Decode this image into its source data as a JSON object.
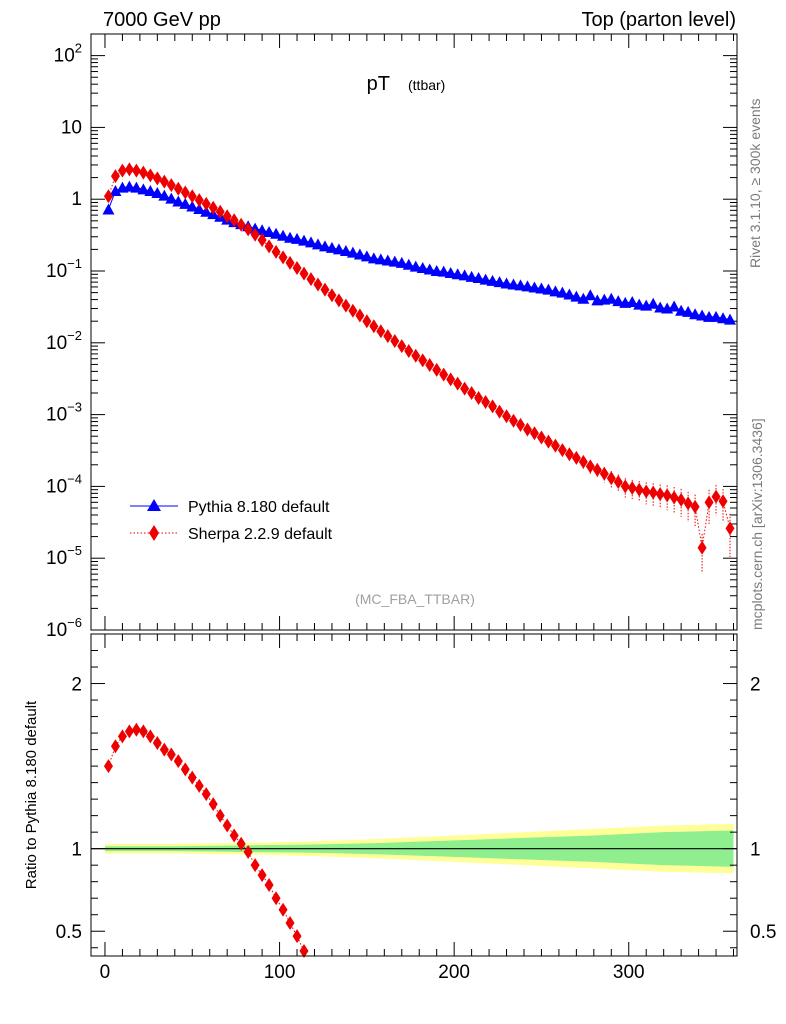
{
  "header": {
    "left": "7000 GeV pp",
    "right": "Top (parton level)"
  },
  "side_labels": {
    "rivet": "Rivet 3.1.10, ≥ 300k events",
    "mcplots": "mcplots.cern.ch [arXiv:1306.3436]"
  },
  "chart_data": [
    {
      "type": "scatter",
      "panel": "main",
      "title_main": "pT",
      "title_sub": "(ttbar)",
      "watermark": "(MC_FBA_TTBAR)",
      "yscale": "log",
      "ylim": [
        1e-06,
        200
      ],
      "xlim": [
        -8,
        362
      ],
      "ytick_labels": [
        {
          "value": 1e-06,
          "base": "10",
          "exp": "−6"
        },
        {
          "value": 1e-05,
          "base": "10",
          "exp": "−5"
        },
        {
          "value": 0.0001,
          "base": "10",
          "exp": "−4"
        },
        {
          "value": 0.001,
          "base": "10",
          "exp": "−3"
        },
        {
          "value": 0.01,
          "base": "10",
          "exp": "−2"
        },
        {
          "value": 0.1,
          "base": "10",
          "exp": "−1"
        },
        {
          "value": 1,
          "base": "1",
          "exp": ""
        },
        {
          "value": 10,
          "base": "10",
          "exp": ""
        },
        {
          "value": 100,
          "base": "10",
          "exp": "2"
        }
      ],
      "legend_position": "lower-left",
      "series": [
        {
          "name": "Pythia 8.180 default",
          "color": "#0000ff",
          "marker": "triangle",
          "linestyle": "solid",
          "x": [
            2,
            6,
            10,
            14,
            18,
            22,
            26,
            30,
            34,
            38,
            42,
            46,
            50,
            54,
            58,
            62,
            66,
            70,
            74,
            78,
            82,
            86,
            90,
            94,
            98,
            102,
            106,
            110,
            114,
            118,
            122,
            126,
            130,
            134,
            138,
            142,
            146,
            150,
            154,
            158,
            162,
            166,
            170,
            174,
            178,
            182,
            186,
            190,
            194,
            198,
            202,
            206,
            210,
            214,
            218,
            222,
            226,
            230,
            234,
            238,
            242,
            246,
            250,
            254,
            258,
            262,
            266,
            270,
            274,
            278,
            282,
            286,
            290,
            294,
            298,
            302,
            306,
            310,
            314,
            318,
            322,
            326,
            330,
            334,
            338,
            342,
            346,
            350,
            354,
            358
          ],
          "y": [
            0.72,
            1.3,
            1.45,
            1.5,
            1.45,
            1.37,
            1.3,
            1.22,
            1.12,
            1.02,
            0.93,
            0.86,
            0.79,
            0.73,
            0.67,
            0.62,
            0.57,
            0.52,
            0.48,
            0.45,
            0.42,
            0.39,
            0.37,
            0.35,
            0.33,
            0.31,
            0.29,
            0.28,
            0.265,
            0.25,
            0.235,
            0.22,
            0.21,
            0.2,
            0.19,
            0.18,
            0.17,
            0.16,
            0.15,
            0.145,
            0.14,
            0.135,
            0.13,
            0.122,
            0.115,
            0.11,
            0.105,
            0.1,
            0.098,
            0.094,
            0.09,
            0.087,
            0.083,
            0.08,
            0.076,
            0.073,
            0.07,
            0.067,
            0.065,
            0.063,
            0.061,
            0.059,
            0.057,
            0.055,
            0.052,
            0.05,
            0.047,
            0.044,
            0.041,
            0.046,
            0.039,
            0.04,
            0.041,
            0.038,
            0.036,
            0.037,
            0.034,
            0.033,
            0.035,
            0.031,
            0.03,
            0.032,
            0.028,
            0.027,
            0.025,
            0.024,
            0.023,
            0.023,
            0.022,
            0.021
          ]
        },
        {
          "name": "Sherpa 2.2.9 default",
          "color": "#ee0000",
          "marker": "diamond",
          "linestyle": "dotted",
          "x": [
            2,
            6,
            10,
            14,
            18,
            22,
            26,
            30,
            34,
            38,
            42,
            46,
            50,
            54,
            58,
            62,
            66,
            70,
            74,
            78,
            82,
            86,
            90,
            94,
            98,
            102,
            106,
            110,
            114,
            118,
            122,
            126,
            130,
            134,
            138,
            142,
            146,
            150,
            154,
            158,
            162,
            166,
            170,
            174,
            178,
            182,
            186,
            190,
            194,
            198,
            202,
            206,
            210,
            214,
            218,
            222,
            226,
            230,
            234,
            238,
            242,
            246,
            250,
            254,
            258,
            262,
            266,
            270,
            274,
            278,
            282,
            286,
            290,
            294,
            298,
            302,
            306,
            310,
            314,
            318,
            322,
            326,
            330,
            334,
            338,
            342,
            346,
            350,
            354,
            358
          ],
          "y": [
            1.1,
            2.1,
            2.5,
            2.6,
            2.5,
            2.35,
            2.15,
            1.95,
            1.76,
            1.57,
            1.4,
            1.24,
            1.1,
            0.97,
            0.86,
            0.76,
            0.67,
            0.58,
            0.51,
            0.44,
            0.38,
            0.32,
            0.27,
            0.22,
            0.185,
            0.155,
            0.13,
            0.11,
            0.092,
            0.077,
            0.065,
            0.055,
            0.046,
            0.039,
            0.033,
            0.028,
            0.024,
            0.02,
            0.017,
            0.0145,
            0.0124,
            0.0106,
            0.009,
            0.0077,
            0.0066,
            0.0057,
            0.0049,
            0.0042,
            0.0036,
            0.0031,
            0.0027,
            0.0023,
            0.002,
            0.0017,
            0.0015,
            0.0013,
            0.0011,
            0.00095,
            0.00082,
            0.00072,
            0.00062,
            0.00055,
            0.00048,
            0.00042,
            0.00037,
            0.00032,
            0.00028,
            0.00025,
            0.00022,
            0.00019,
            0.00017,
            0.00015,
            0.00013,
            0.000115,
            0.0001,
            9.5e-05,
            9e-05,
            8.5e-05,
            8.2e-05,
            7.8e-05,
            7.5e-05,
            7e-05,
            6.5e-05,
            5.8e-05,
            5.2e-05,
            1.4e-05,
            6e-05,
            7.2e-05,
            6.2e-05,
            2.6e-05
          ],
          "yerr": [
            0.02,
            0.03,
            0.03,
            0.03,
            0.03,
            0.03,
            0.03,
            0.03,
            0.03,
            0.03,
            0.03,
            0.03,
            0.03,
            0.03,
            0.03,
            0.03,
            0.03,
            0.03,
            0.03,
            0.03,
            0.03,
            0.03,
            0.03,
            0.03,
            0.03,
            0.03,
            0.03,
            0.03,
            0.03,
            0.03,
            0.03,
            0.03,
            0.03,
            0.03,
            0.03,
            0.03,
            0.03,
            0.03,
            0.03,
            0.03,
            0.03,
            0.03,
            0.03,
            0.03,
            0.03,
            0.03,
            0.03,
            0.04,
            0.04,
            0.04,
            0.05,
            0.05,
            0.06,
            0.06,
            0.07,
            0.07,
            0.08,
            0.09,
            0.1,
            0.1,
            0.11,
            0.12,
            0.13,
            0.14,
            0.15,
            0.16,
            0.17,
            0.18,
            0.2,
            0.21,
            0.23,
            0.24,
            0.26,
            0.28,
            0.3,
            0.3,
            0.32,
            0.34,
            0.35,
            0.36,
            0.38,
            0.4,
            0.42,
            0.45,
            0.48,
            0.55,
            0.5,
            0.45,
            0.48,
            0.6
          ]
        }
      ]
    },
    {
      "type": "scatter",
      "panel": "ratio",
      "ylabel": "Ratio to Pythia 8.180 default",
      "ylim": [
        0.35,
        2.3
      ],
      "xlim": [
        -8,
        362
      ],
      "ytick_labels": [
        {
          "value": 0.5,
          "label": "0.5"
        },
        {
          "value": 1,
          "label": "1"
        },
        {
          "value": 2,
          "label": "2"
        }
      ],
      "xtick_labels": [
        {
          "value": 0,
          "label": "0"
        },
        {
          "value": 100,
          "label": "100"
        },
        {
          "value": 200,
          "label": "200"
        },
        {
          "value": 300,
          "label": "300"
        }
      ],
      "reference_line": 1,
      "bands": {
        "x": [
          0,
          40,
          80,
          120,
          160,
          200,
          240,
          280,
          320,
          360
        ],
        "outer_halfwidth": [
          0.03,
          0.03,
          0.035,
          0.045,
          0.06,
          0.08,
          0.1,
          0.12,
          0.14,
          0.15
        ],
        "inner_halfwidth": [
          0.015,
          0.015,
          0.02,
          0.025,
          0.035,
          0.05,
          0.065,
          0.08,
          0.1,
          0.11
        ],
        "outer_color": "#ffff99",
        "inner_color": "#8fef8f"
      },
      "series": [
        {
          "name": "Sherpa 2.2.9 default / Pythia 8.180 default",
          "color": "#ee0000",
          "marker": "diamond",
          "linestyle": "dotted",
          "x": [
            2,
            6,
            10,
            14,
            18,
            22,
            26,
            30,
            34,
            38,
            42,
            46,
            50,
            54,
            58,
            62,
            66,
            70,
            74,
            78,
            82,
            86,
            90,
            94,
            98,
            102,
            106,
            110,
            114
          ],
          "y": [
            1.5,
            1.62,
            1.68,
            1.71,
            1.72,
            1.71,
            1.68,
            1.64,
            1.6,
            1.57,
            1.53,
            1.48,
            1.43,
            1.38,
            1.33,
            1.27,
            1.2,
            1.14,
            1.08,
            1.03,
            0.98,
            0.9,
            0.84,
            0.78,
            0.7,
            0.63,
            0.55,
            0.47,
            0.38
          ]
        }
      ]
    }
  ]
}
